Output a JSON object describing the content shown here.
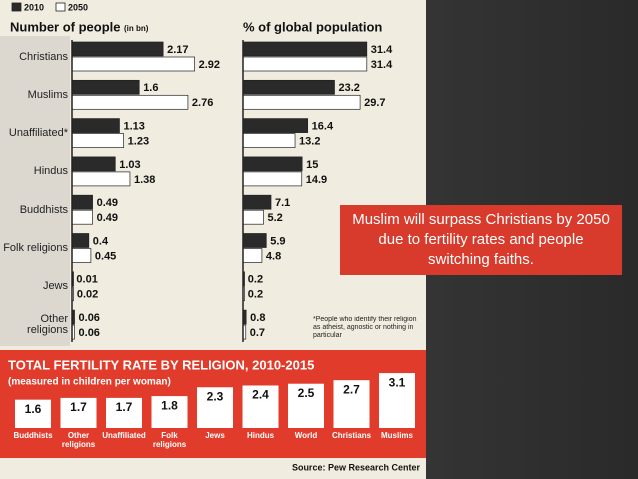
{
  "chart_data": [
    {
      "type": "bar",
      "orientation": "horizontal",
      "title": "Number of people",
      "subtitle": "(in bn)",
      "categories": [
        "Christians",
        "Muslims",
        "Unaffiliated*",
        "Hindus",
        "Buddhists",
        "Folk religions",
        "Jews",
        "Other religions"
      ],
      "series": [
        {
          "name": "2010",
          "color": "#2a2a2a",
          "values": [
            2.17,
            1.6,
            1.13,
            1.03,
            0.49,
            0.4,
            0.01,
            0.06
          ]
        },
        {
          "name": "2050",
          "color": "#ffffff",
          "values": [
            2.92,
            2.76,
            1.23,
            1.38,
            0.49,
            0.45,
            0.02,
            0.06
          ]
        }
      ],
      "xlim": [
        0,
        3
      ],
      "footnote": "*People who identify their religion as atheist, agnostic or nothing in particular"
    },
    {
      "type": "bar",
      "orientation": "horizontal",
      "title": "% of global population",
      "series": [
        {
          "color": "#2a2a2a",
          "values": [
            31.4,
            23.2,
            16.4,
            15,
            7.1,
            5.9,
            0.2,
            0.8
          ]
        },
        {
          "color": "#ffffff",
          "values": [
            31.4,
            29.7,
            13.2,
            14.9,
            5.2,
            4.8,
            0.2,
            0.7
          ]
        }
      ],
      "xlim": [
        0,
        35
      ]
    },
    {
      "type": "bar",
      "title": "TOTAL FERTILITY RATE BY RELIGION, 2010-2015",
      "subtitle": "(measured in children per woman)",
      "categories": [
        "Buddhists",
        "Other religions",
        "Unaffiliated",
        "Folk religions",
        "Jews",
        "Hindus",
        "World",
        "Christians",
        "Muslims"
      ],
      "values": [
        1.6,
        1.7,
        1.7,
        1.8,
        2.3,
        2.4,
        2.5,
        2.7,
        3.1
      ],
      "color": "#ffffff",
      "ylim": [
        0,
        3.5
      ],
      "source": "Source: Pew Research Center"
    }
  ],
  "callout": "Muslim will surpass Christians by 2050 due to fertility rates and people switching faiths."
}
